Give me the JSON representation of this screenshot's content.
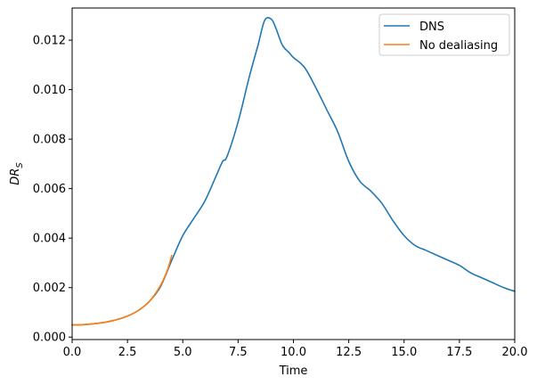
{
  "chart_data": {
    "type": "line",
    "title": "",
    "xlabel": "Time",
    "ylabel": "DR",
    "ylabel_subscript": "S",
    "xlim": [
      0,
      20
    ],
    "ylim": [
      -0.0001,
      0.0133
    ],
    "xticks": [
      0,
      2.5,
      5,
      7.5,
      10,
      12.5,
      15,
      17.5,
      20
    ],
    "xtick_labels": [
      "0.0",
      "2.5",
      "5.0",
      "7.5",
      "10.0",
      "12.5",
      "15.0",
      "17.5",
      "20.0"
    ],
    "yticks": [
      0,
      0.002,
      0.004,
      0.006,
      0.008,
      0.01,
      0.012
    ],
    "ytick_labels": [
      "0.000",
      "0.002",
      "0.004",
      "0.006",
      "0.008",
      "0.010",
      "0.012"
    ],
    "grid": false,
    "legend_position": "top-right",
    "series": [
      {
        "name": "DNS",
        "color": "#1f77b4",
        "x": [
          0,
          0.5,
          1.0,
          1.5,
          2.0,
          2.5,
          3.0,
          3.5,
          4.0,
          4.5,
          5.0,
          5.5,
          6.0,
          6.5,
          6.8,
          7.0,
          7.5,
          8.0,
          8.4,
          8.7,
          9.0,
          9.2,
          9.5,
          9.8,
          10.0,
          10.5,
          11.0,
          11.5,
          12.0,
          12.5,
          13.0,
          13.5,
          14.0,
          14.5,
          15.0,
          15.5,
          16.0,
          16.5,
          17.0,
          17.5,
          18.0,
          18.5,
          19.0,
          19.5,
          20.0
        ],
        "y": [
          0.00049,
          0.0005,
          0.00054,
          0.0006,
          0.0007,
          0.00085,
          0.00108,
          0.00145,
          0.00205,
          0.0031,
          0.0041,
          0.0048,
          0.0055,
          0.0065,
          0.0071,
          0.0073,
          0.0087,
          0.0105,
          0.0118,
          0.0128,
          0.01285,
          0.0125,
          0.0118,
          0.0115,
          0.0113,
          0.0109,
          0.0101,
          0.0092,
          0.0083,
          0.0071,
          0.0063,
          0.0059,
          0.0054,
          0.0047,
          0.0041,
          0.0037,
          0.0035,
          0.0033,
          0.0031,
          0.0029,
          0.0026,
          0.0024,
          0.0022,
          0.002,
          0.00185
        ]
      },
      {
        "name": "No dealiasing",
        "color": "#ff7f0e",
        "x": [
          0,
          0.5,
          1.0,
          1.5,
          2.0,
          2.5,
          3.0,
          3.5,
          4.0,
          4.3,
          4.5
        ],
        "y": [
          0.00049,
          0.0005,
          0.00054,
          0.0006,
          0.0007,
          0.00085,
          0.00108,
          0.00145,
          0.0021,
          0.0027,
          0.0033
        ]
      }
    ]
  }
}
